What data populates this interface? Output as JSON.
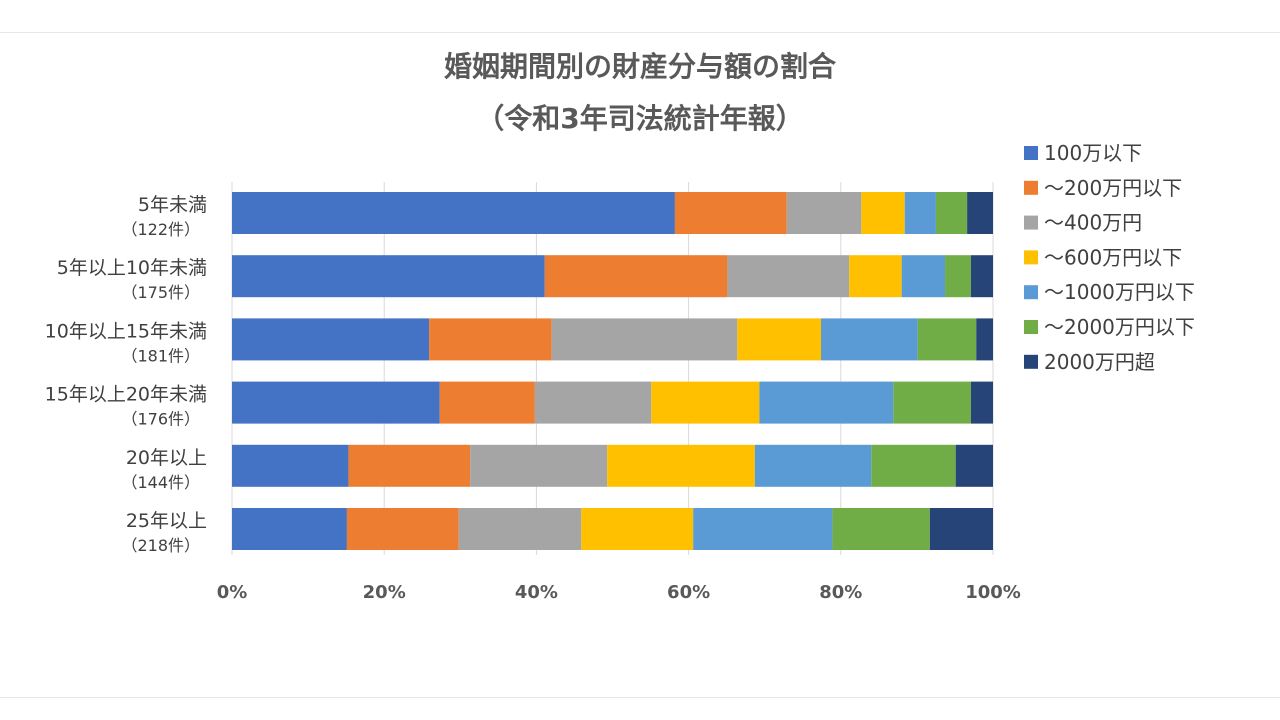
{
  "chart_data": {
    "type": "bar",
    "orientation": "horizontal",
    "stacked": "percent",
    "title_line1": "婚姻期間別の財産分与額の割合",
    "title_line2": "（令和3年司法統計年報）",
    "categories": [
      {
        "label": "5年未満",
        "count": "（122件）"
      },
      {
        "label": "5年以上10年未満",
        "count": "（175件）"
      },
      {
        "label": "10年以上15年未満",
        "count": "（181件）"
      },
      {
        "label": "15年以上20年未満",
        "count": "（176件）"
      },
      {
        "label": "20年以上",
        "count": "（144件）"
      },
      {
        "label": "25年以上",
        "count": "（218件）"
      }
    ],
    "series": [
      {
        "name": "100万以下",
        "color": "#4472C4",
        "values": [
          58.2,
          41.1,
          25.9,
          27.3,
          15.3,
          15.1
        ]
      },
      {
        "name": "～200万円以下",
        "color": "#ED7D31",
        "values": [
          14.7,
          24.0,
          16.1,
          12.5,
          16.0,
          14.7
        ]
      },
      {
        "name": "～400万円",
        "color": "#A5A5A5",
        "values": [
          9.8,
          16.0,
          24.4,
          15.3,
          18.0,
          16.1
        ]
      },
      {
        "name": "～600万円以下",
        "color": "#FFC000",
        "values": [
          5.7,
          6.9,
          11.0,
          14.2,
          19.4,
          14.7
        ]
      },
      {
        "name": "～1000万円以下",
        "color": "#5B9BD5",
        "values": [
          4.1,
          5.7,
          12.7,
          17.6,
          15.3,
          18.3
        ]
      },
      {
        "name": "～2000万円以下",
        "color": "#70AD47",
        "values": [
          4.1,
          3.4,
          7.7,
          10.2,
          11.1,
          12.8
        ]
      },
      {
        "name": "2000万円超",
        "color": "#264478",
        "values": [
          3.4,
          2.9,
          2.2,
          2.9,
          4.9,
          8.3
        ]
      }
    ],
    "x_ticks": [
      "0%",
      "20%",
      "40%",
      "60%",
      "80%",
      "100%"
    ],
    "xlim": [
      0,
      100
    ],
    "gridlines": "vertical",
    "legend_position": "right"
  }
}
